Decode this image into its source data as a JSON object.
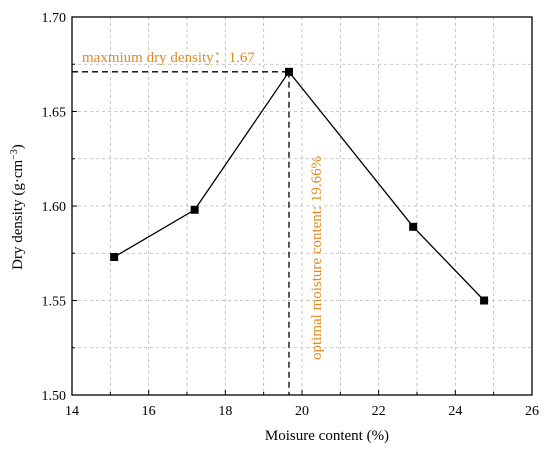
{
  "colors": {
    "axis": "#000000",
    "grid": "#b5b5b5",
    "series": "#000000",
    "annotation": "#e08a1e"
  },
  "chart_data": {
    "type": "line",
    "xlabel": "Moisure content (%)",
    "ylabel_main": "Dry density (g·cm",
    "ylabel_sup": "−3",
    "ylabel_close": ")",
    "xlim": [
      14,
      26
    ],
    "ylim": [
      1.5,
      1.7
    ],
    "xticks": [
      14,
      16,
      18,
      20,
      22,
      24,
      26
    ],
    "yticks": [
      1.5,
      1.55,
      1.6,
      1.65,
      1.7
    ],
    "xtick_labels": [
      "14",
      "16",
      "18",
      "20",
      "22",
      "24",
      "26"
    ],
    "ytick_labels": [
      "1.50",
      "1.55",
      "1.60",
      "1.65",
      "1.70"
    ],
    "grid": "dashed, minor and major",
    "series": [
      {
        "marker": "square",
        "x": [
          15.1,
          17.2,
          19.66,
          22.9,
          24.75
        ],
        "y": [
          1.573,
          1.598,
          1.671,
          1.589,
          1.55
        ]
      }
    ],
    "annotations": {
      "max_density_label": "maxmium dry density：1.67",
      "optimal_moisture_label": "optimal moisture content: 19.66%",
      "peak_x": 19.66,
      "peak_y": 1.671
    }
  }
}
